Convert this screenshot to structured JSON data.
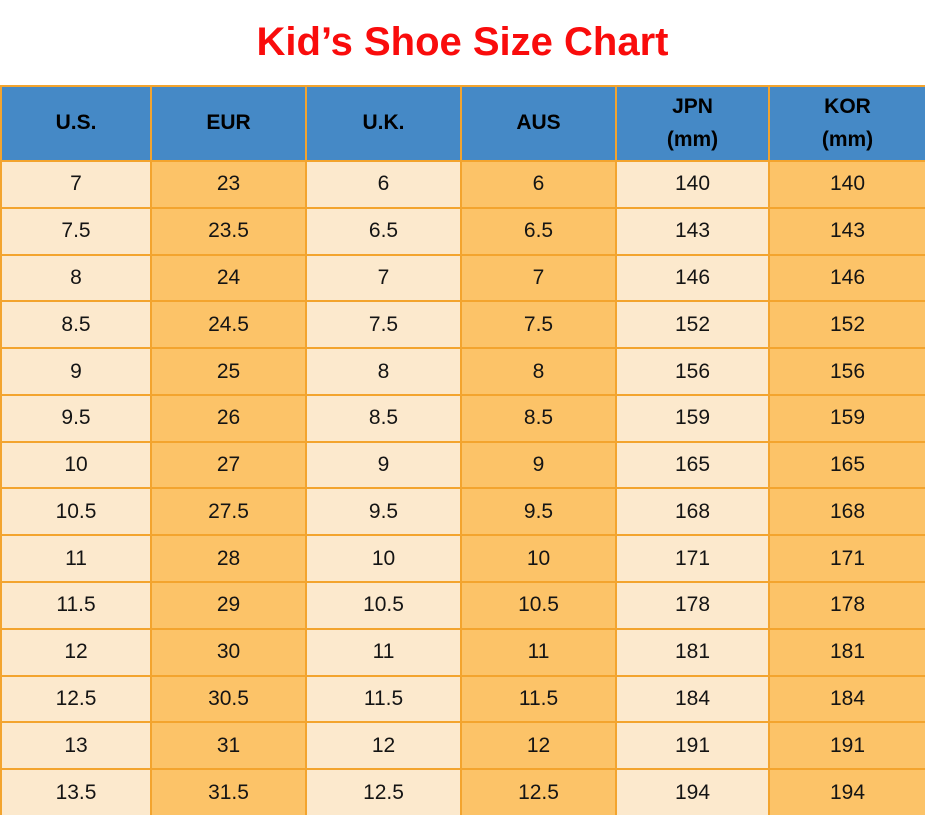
{
  "title": "Kid’s Shoe Size Chart",
  "colors": {
    "title_color": "#F90C0C",
    "header_bg": "#4589C6",
    "row_light_bg": "#FCE9CD",
    "row_orange_bg": "#FCC368",
    "border_color": "#F3A42E",
    "cell_text": "#141414"
  },
  "table": {
    "columns": [
      {
        "label": "U.S.",
        "unit": ""
      },
      {
        "label": "EUR",
        "unit": ""
      },
      {
        "label": "U.K.",
        "unit": ""
      },
      {
        "label": "AUS",
        "unit": ""
      },
      {
        "label": "JPN",
        "unit": "(mm)"
      },
      {
        "label": "KOR",
        "unit": "(mm)"
      }
    ],
    "rows": [
      [
        "7",
        "23",
        "6",
        "6",
        "140",
        "140"
      ],
      [
        "7.5",
        "23.5",
        "6.5",
        "6.5",
        "143",
        "143"
      ],
      [
        "8",
        "24",
        "7",
        "7",
        "146",
        "146"
      ],
      [
        "8.5",
        "24.5",
        "7.5",
        "7.5",
        "152",
        "152"
      ],
      [
        "9",
        "25",
        "8",
        "8",
        "156",
        "156"
      ],
      [
        "9.5",
        "26",
        "8.5",
        "8.5",
        "159",
        "159"
      ],
      [
        "10",
        "27",
        "9",
        "9",
        "165",
        "165"
      ],
      [
        "10.5",
        "27.5",
        "9.5",
        "9.5",
        "168",
        "168"
      ],
      [
        "11",
        "28",
        "10",
        "10",
        "171",
        "171"
      ],
      [
        "11.5",
        "29",
        "10.5",
        "10.5",
        "178",
        "178"
      ],
      [
        "12",
        "30",
        "11",
        "11",
        "181",
        "181"
      ],
      [
        "12.5",
        "30.5",
        "11.5",
        "11.5",
        "184",
        "184"
      ],
      [
        "13",
        "31",
        "12",
        "12",
        "191",
        "191"
      ],
      [
        "13.5",
        "31.5",
        "12.5",
        "12.5",
        "194",
        "194"
      ]
    ]
  },
  "chart_data": {
    "type": "table",
    "title": "Kid’s Shoe Size Chart",
    "columns": [
      "U.S.",
      "EUR",
      "U.K.",
      "AUS",
      "JPN (mm)",
      "KOR (mm)"
    ],
    "rows": [
      [
        "7",
        "23",
        "6",
        "6",
        "140",
        "140"
      ],
      [
        "7.5",
        "23.5",
        "6.5",
        "6.5",
        "143",
        "143"
      ],
      [
        "8",
        "24",
        "7",
        "7",
        "146",
        "146"
      ],
      [
        "8.5",
        "24.5",
        "7.5",
        "7.5",
        "152",
        "152"
      ],
      [
        "9",
        "25",
        "8",
        "8",
        "156",
        "156"
      ],
      [
        "9.5",
        "26",
        "8.5",
        "8.5",
        "159",
        "159"
      ],
      [
        "10",
        "27",
        "9",
        "9",
        "165",
        "165"
      ],
      [
        "10.5",
        "27.5",
        "9.5",
        "9.5",
        "168",
        "168"
      ],
      [
        "11",
        "28",
        "10",
        "10",
        "171",
        "171"
      ],
      [
        "11.5",
        "29",
        "10.5",
        "10.5",
        "178",
        "178"
      ],
      [
        "12",
        "30",
        "11",
        "11",
        "181",
        "181"
      ],
      [
        "12.5",
        "30.5",
        "11.5",
        "11.5",
        "184",
        "184"
      ],
      [
        "13",
        "31",
        "12",
        "12",
        "191",
        "191"
      ],
      [
        "13.5",
        "31.5",
        "12.5",
        "12.5",
        "194",
        "194"
      ]
    ]
  }
}
